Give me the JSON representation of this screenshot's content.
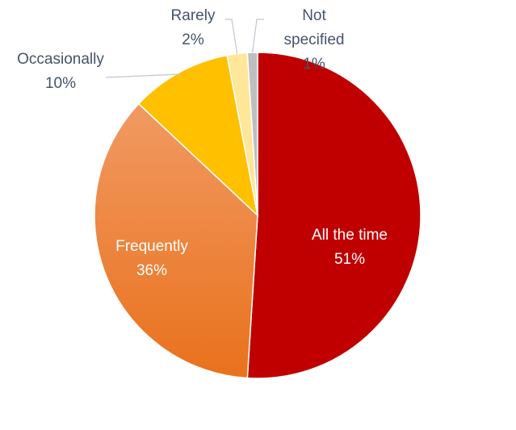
{
  "chart_data": {
    "type": "pie",
    "title": "",
    "slices": [
      {
        "label": "All the time",
        "value": 51,
        "percent_label": "51%",
        "color": "#c00000"
      },
      {
        "label": "Frequently",
        "value": 36,
        "percent_label": "36%",
        "color": "#ed7d31"
      },
      {
        "label": "Occasionally",
        "value": 10,
        "percent_label": "10%",
        "color": "#ffc000"
      },
      {
        "label": "Rarely",
        "value": 2,
        "percent_label": "2%",
        "color": "#ffe699"
      },
      {
        "label": "Not specified",
        "value": 1,
        "percent_label": "1%",
        "color": "#bfbfbf"
      }
    ],
    "legend": "none"
  }
}
